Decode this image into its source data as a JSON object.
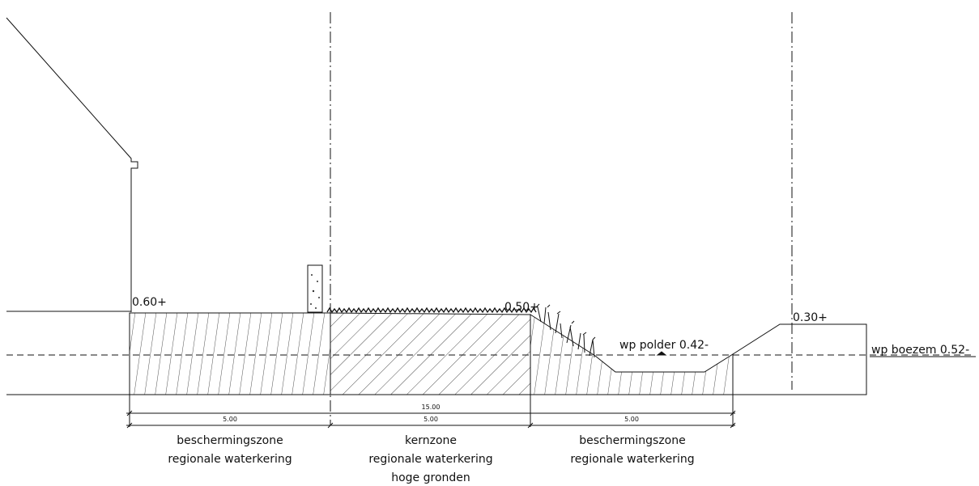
{
  "levels": {
    "left": "0.60+",
    "middle": "0.50+",
    "right": "0.30+"
  },
  "water_levels": {
    "polder": "wp polder 0.42-",
    "boezem": "wp boezem 0.52-"
  },
  "dimensions": {
    "total": "15.00",
    "segments": [
      "5.00",
      "5.00",
      "5.00"
    ]
  },
  "zones": [
    {
      "lines": [
        "beschermingszone",
        "regionale waterkering"
      ]
    },
    {
      "lines": [
        "kernzone",
        "regionale waterkering",
        "hoge gronden"
      ]
    },
    {
      "lines": [
        "beschermingszone",
        "regionale waterkering"
      ]
    }
  ]
}
